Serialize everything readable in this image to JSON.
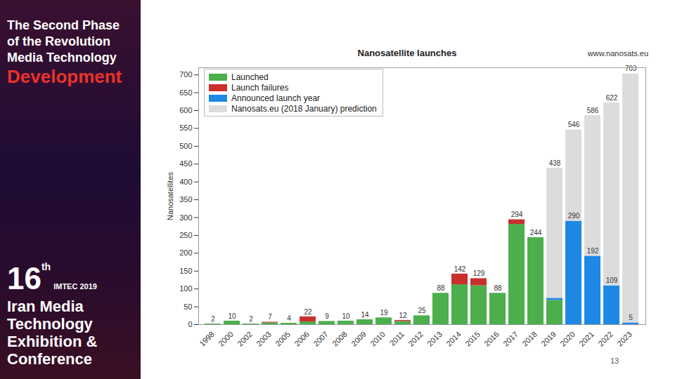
{
  "chart_data": {
    "type": "bar",
    "title": "Nanosatellite launches",
    "source": "www.nanosats.eu",
    "y_label": "Nanosatellites",
    "categories": [
      "1998",
      "2000",
      "2002",
      "2003",
      "2005",
      "2006",
      "2007",
      "2008",
      "2009",
      "2010",
      "2011",
      "2012",
      "2013",
      "2014",
      "2015",
      "2016",
      "2017",
      "2018",
      "2019",
      "2020",
      "2021",
      "2022",
      "2023"
    ],
    "series": [
      {
        "name": "Launched",
        "color": "#4cae4c",
        "values": [
          2,
          10,
          2,
          5,
          4,
          8,
          9,
          10,
          14,
          19,
          9,
          25,
          88,
          112,
          109,
          88,
          281,
          244,
          68,
          null,
          null,
          null,
          null
        ]
      },
      {
        "name": "Launch failures",
        "color": "#c9302c",
        "values": [
          null,
          null,
          null,
          2,
          null,
          14,
          null,
          null,
          null,
          null,
          3,
          null,
          null,
          30,
          20,
          null,
          13,
          null,
          null,
          null,
          null,
          null,
          null
        ]
      },
      {
        "name": "Announced launch year",
        "color": "#1e88e5",
        "values": [
          null,
          null,
          null,
          null,
          null,
          null,
          null,
          null,
          null,
          null,
          null,
          null,
          null,
          null,
          null,
          null,
          null,
          null,
          6,
          290,
          192,
          109,
          5
        ],
        "value_labels": [
          null,
          null,
          null,
          null,
          null,
          null,
          null,
          null,
          null,
          null,
          null,
          null,
          null,
          null,
          null,
          null,
          null,
          null,
          null,
          "290",
          "192",
          "109",
          "5"
        ]
      },
      {
        "name": "Nanosats.eu (2018 January) prediction",
        "color": "#dcdcdc",
        "values": [
          null,
          null,
          null,
          null,
          null,
          null,
          null,
          null,
          null,
          null,
          null,
          null,
          null,
          null,
          null,
          null,
          null,
          null,
          364,
          256,
          394,
          513,
          698
        ]
      }
    ],
    "totals": [
      2,
      10,
      2,
      7,
      4,
      22,
      9,
      10,
      14,
      19,
      12,
      25,
      88,
      142,
      129,
      88,
      294,
      244,
      438,
      546,
      586,
      622,
      703
    ],
    "ylim": [
      0,
      720
    ],
    "yticks": [
      0,
      50,
      100,
      150,
      200,
      250,
      300,
      350,
      400,
      450,
      500,
      550,
      600,
      650,
      700
    ],
    "stacked": true,
    "data_labels": true,
    "grid": false,
    "legend": "top-left"
  },
  "slide": {
    "sidebar": [
      "The Second Phase",
      "of the Revolution",
      "Media Technology",
      "Development"
    ],
    "event": {
      "number": "16",
      "suffix": "th",
      "name": "IMTEC 2019",
      "lines": [
        "Iran Media",
        "Technology",
        "Exhibition &",
        "Conference"
      ]
    },
    "page": 13
  }
}
